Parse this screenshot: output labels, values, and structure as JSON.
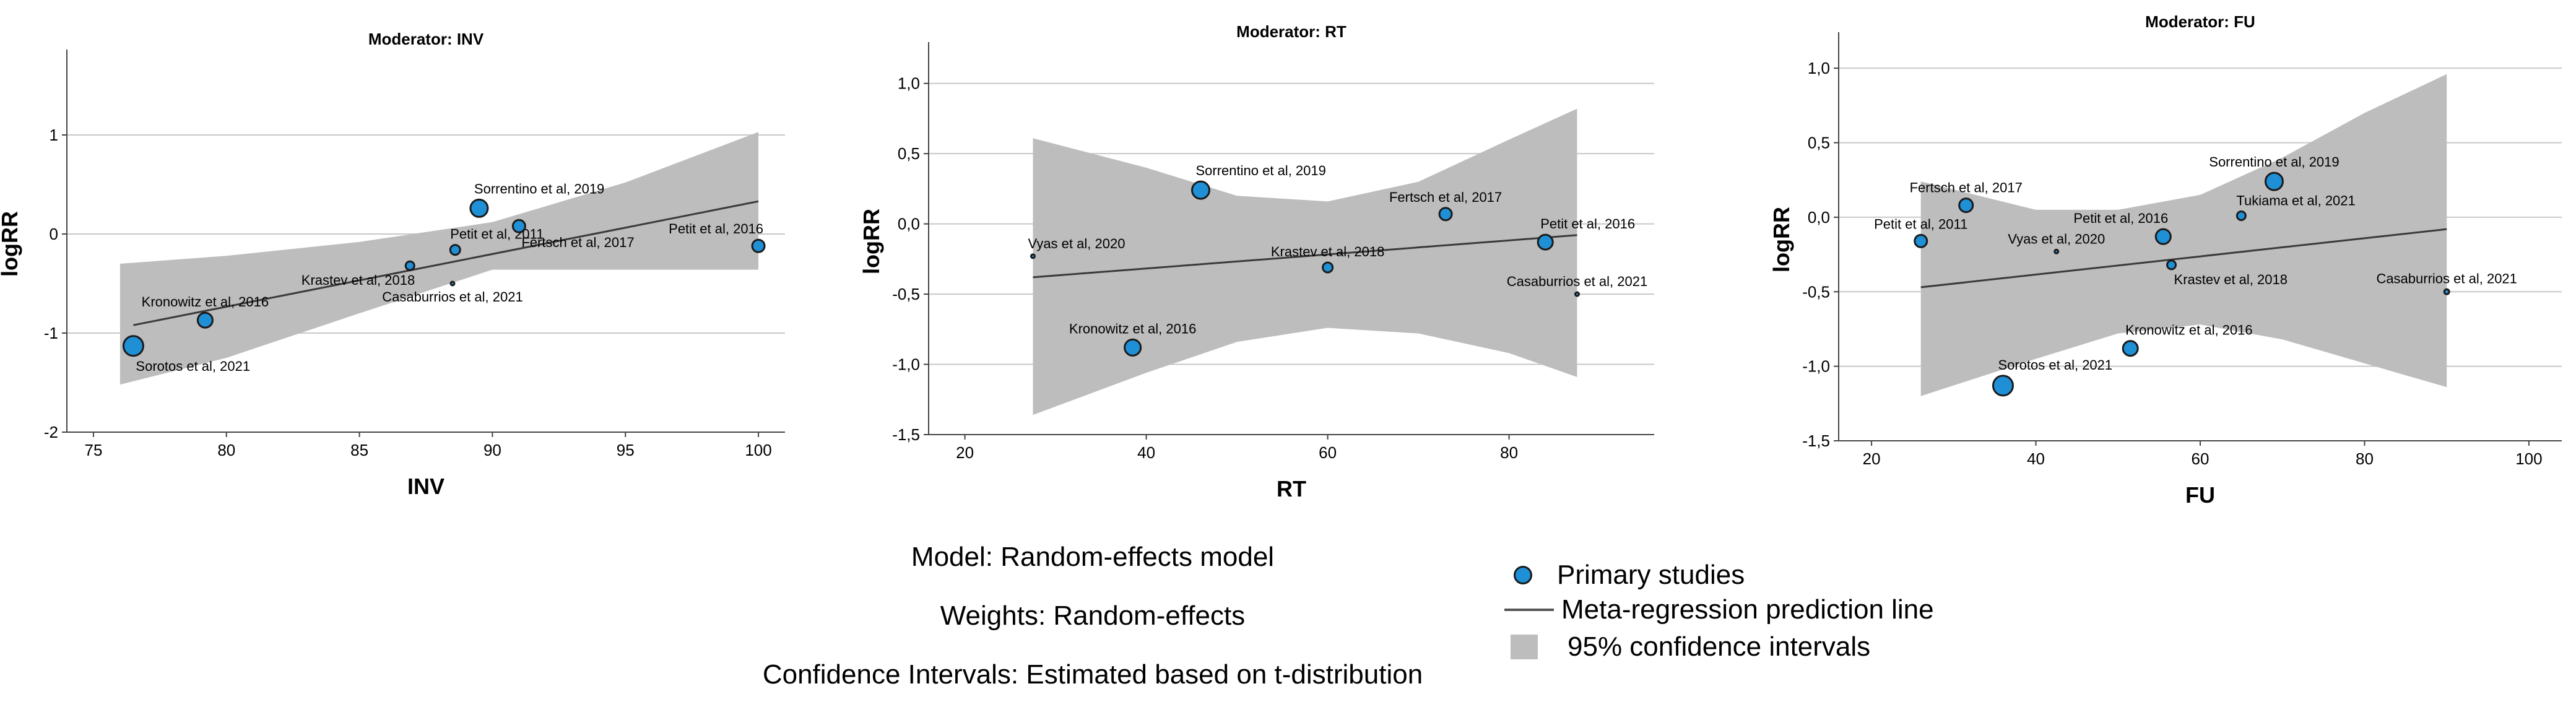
{
  "colors": {
    "point_fill": "#1f8fd6",
    "point_stroke": "#1a1a1a",
    "ci_band": "#bdbdbd",
    "regression_line": "#3a3a3a",
    "gridline": "#c8c8c8"
  },
  "chart_data": [
    {
      "type": "scatter",
      "title": "Moderator: INV",
      "xlabel": "INV",
      "ylabel": "logRR",
      "xlim": [
        74,
        101
      ],
      "ylim": [
        -2,
        1.8
      ],
      "xticks": [
        75,
        80,
        85,
        90,
        95,
        100
      ],
      "yticks": [
        -2,
        -1,
        0,
        1
      ],
      "grid": "horizontal",
      "points": [
        {
          "label": "Sorotos et al, 2021",
          "x": 76.5,
          "y": -1.13,
          "r": 16,
          "label_pos": "below-right"
        },
        {
          "label": "Kronowitz et al, 2016",
          "x": 79.2,
          "y": -0.87,
          "r": 12,
          "label_pos": "above"
        },
        {
          "label": "Krastev et al, 2018",
          "x": 86.9,
          "y": -0.32,
          "r": 7,
          "label_pos": "below-left"
        },
        {
          "label": "Petit et al, 2011",
          "x": 88.6,
          "y": -0.16,
          "r": 8,
          "label_pos": "above-right"
        },
        {
          "label": "Casaburrios et al, 2021",
          "x": 88.5,
          "y": -0.5,
          "r": 3,
          "label_pos": "below"
        },
        {
          "label": "Sorrentino et al, 2019",
          "x": 89.5,
          "y": 0.26,
          "r": 14,
          "label_pos": "above-right"
        },
        {
          "label": "Fertsch et al, 2017",
          "x": 91.0,
          "y": 0.08,
          "r": 10,
          "label_pos": "below-right"
        },
        {
          "label": "Petit et al, 2016",
          "x": 100.0,
          "y": -0.12,
          "r": 10,
          "label_pos": "above-left"
        }
      ],
      "regression": {
        "x": [
          76.5,
          100
        ],
        "y": [
          -0.92,
          0.33
        ]
      },
      "ci": {
        "x": [
          76,
          80,
          85,
          90,
          95,
          100
        ],
        "upper": [
          -0.3,
          -0.22,
          -0.08,
          0.12,
          0.52,
          1.03
        ],
        "lower": [
          -1.52,
          -1.25,
          -0.8,
          -0.36,
          -0.36,
          -0.36
        ]
      }
    },
    {
      "type": "scatter",
      "title": "Moderator: RT",
      "xlabel": "RT",
      "ylabel": "logRR",
      "xlim": [
        16,
        96
      ],
      "ylim": [
        -1.5,
        1.25
      ],
      "xticks": [
        20,
        40,
        60,
        80
      ],
      "yticks": [
        -1.5,
        -1.0,
        -0.5,
        0.0,
        0.5,
        1.0
      ],
      "yticklabels": [
        "-1,5",
        "-1,0",
        "-0,5",
        "0,0",
        "0,5",
        "1,0"
      ],
      "grid": "horizontal",
      "points": [
        {
          "label": "Vyas et al, 2020",
          "x": 27.5,
          "y": -0.23,
          "r": 3,
          "label_pos": "above-right"
        },
        {
          "label": "Kronowitz et al, 2016",
          "x": 38.5,
          "y": -0.88,
          "r": 13,
          "label_pos": "above"
        },
        {
          "label": "Sorrentino et al, 2019",
          "x": 46.0,
          "y": 0.24,
          "r": 14,
          "label_pos": "above-right"
        },
        {
          "label": "Krastev et al, 2018",
          "x": 60.0,
          "y": -0.31,
          "r": 8,
          "label_pos": "above"
        },
        {
          "label": "Fertsch et al, 2017",
          "x": 73.0,
          "y": 0.07,
          "r": 10,
          "label_pos": "above"
        },
        {
          "label": "Petit et al, 2016",
          "x": 84.0,
          "y": -0.13,
          "r": 12,
          "label_pos": "above-right"
        },
        {
          "label": "Casaburrios et al, 2021",
          "x": 87.5,
          "y": -0.5,
          "r": 3,
          "label_pos": "above"
        }
      ],
      "regression": {
        "x": [
          27.5,
          87.5
        ],
        "y": [
          -0.38,
          -0.08
        ]
      },
      "ci": {
        "x": [
          27.5,
          40,
          50,
          60,
          70,
          80,
          87.5
        ],
        "upper": [
          0.61,
          0.4,
          0.2,
          0.16,
          0.3,
          0.6,
          0.82
        ],
        "lower": [
          -1.36,
          -1.06,
          -0.84,
          -0.74,
          -0.78,
          -0.92,
          -1.09
        ]
      }
    },
    {
      "type": "scatter",
      "title": "Moderator: FU",
      "xlabel": "FU",
      "ylabel": "logRR",
      "xlim": [
        16,
        104
      ],
      "ylim": [
        -1.5,
        1.2
      ],
      "xticks": [
        20,
        40,
        60,
        80,
        100
      ],
      "yticks": [
        -1.5,
        -1.0,
        -0.5,
        0.0,
        0.5,
        1.0
      ],
      "yticklabels": [
        "-1,5",
        "-1,0",
        "-0,5",
        "0,0",
        "0,5",
        "1,0"
      ],
      "grid": "horizontal",
      "points": [
        {
          "label": "Petit et al, 2011",
          "x": 26.0,
          "y": -0.16,
          "r": 10,
          "label_pos": "above"
        },
        {
          "label": "Fertsch et al, 2017",
          "x": 31.5,
          "y": 0.08,
          "r": 11,
          "label_pos": "above"
        },
        {
          "label": "Sorotos et al, 2021",
          "x": 36.0,
          "y": -1.13,
          "r": 16,
          "label_pos": "above-right"
        },
        {
          "label": "Vyas et al, 2020",
          "x": 42.5,
          "y": -0.23,
          "r": 3,
          "label_pos": "above"
        },
        {
          "label": "Kronowitz et al, 2016",
          "x": 51.5,
          "y": -0.88,
          "r": 12,
          "label_pos": "above-right"
        },
        {
          "label": "Petit et al, 2016",
          "x": 55.5,
          "y": -0.13,
          "r": 12,
          "label_pos": "above-left"
        },
        {
          "label": "Krastev et al, 2018",
          "x": 56.5,
          "y": -0.32,
          "r": 7,
          "label_pos": "below-right"
        },
        {
          "label": "Tukiama et al, 2021",
          "x": 65.0,
          "y": 0.01,
          "r": 7,
          "label_pos": "above-right"
        },
        {
          "label": "Sorrentino et al, 2019",
          "x": 69.0,
          "y": 0.24,
          "r": 14,
          "label_pos": "above"
        },
        {
          "label": "Casaburrios et al, 2021",
          "x": 90.0,
          "y": -0.5,
          "r": 4,
          "label_pos": "above"
        }
      ],
      "regression": {
        "x": [
          26,
          90
        ],
        "y": [
          -0.47,
          -0.08
        ]
      },
      "ci": {
        "x": [
          26,
          40,
          50,
          60,
          70,
          80,
          90
        ],
        "upper": [
          0.24,
          0.05,
          0.05,
          0.15,
          0.4,
          0.7,
          0.96
        ],
        "lower": [
          -1.2,
          -0.95,
          -0.78,
          -0.72,
          -0.82,
          -0.98,
          -1.14
        ]
      }
    }
  ],
  "footer": {
    "model": "Model: Random-effects model",
    "weights": "Weights: Random-effects",
    "ci_method": "Confidence Intervals: Estimated based on t-distribution"
  },
  "legend": {
    "points": "Primary studies",
    "line": "Meta-regression prediction line",
    "band": "95% confidence intervals"
  }
}
